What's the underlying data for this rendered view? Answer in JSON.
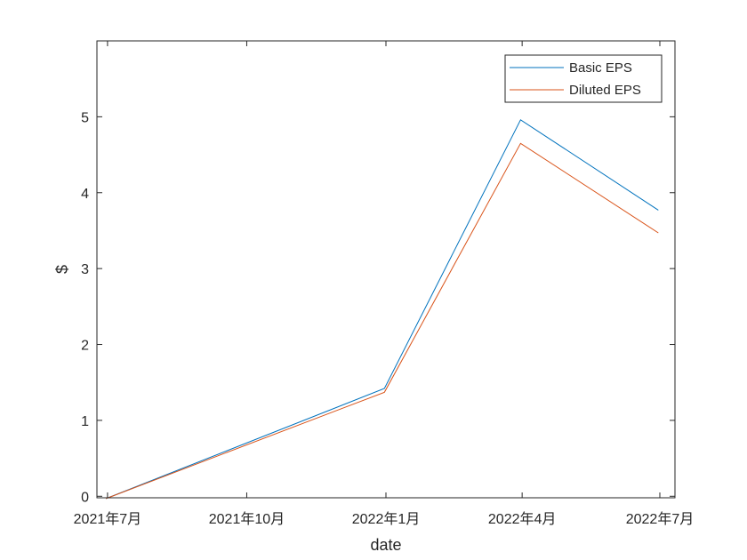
{
  "chart_data": {
    "type": "line",
    "title": "",
    "xlabel": "date",
    "ylabel": "$",
    "x": [
      "2021-06-30",
      "2021-12-31",
      "2022-03-31",
      "2022-06-30"
    ],
    "xlim": [
      "2021-06-24",
      "2022-07-11"
    ],
    "xticks": [
      {
        "date": "2021-07-01",
        "label": "2021年7月"
      },
      {
        "date": "2021-10-01",
        "label": "2021年10月"
      },
      {
        "date": "2022-01-01",
        "label": "2022年1月"
      },
      {
        "date": "2022-04-01",
        "label": "2022年4月"
      },
      {
        "date": "2022-07-01",
        "label": "2022年7月"
      }
    ],
    "ylim": [
      -0.02,
      6
    ],
    "yticks": [
      0,
      1,
      2,
      3,
      4,
      5
    ],
    "series": [
      {
        "name": "Basic EPS",
        "color": "#0072BD",
        "values": [
          -0.03,
          1.42,
          4.96,
          3.77
        ]
      },
      {
        "name": "Diluted EPS",
        "color": "#D95319",
        "values": [
          -0.03,
          1.37,
          4.65,
          3.47
        ]
      }
    ],
    "legend": "top-right",
    "grid": false
  }
}
